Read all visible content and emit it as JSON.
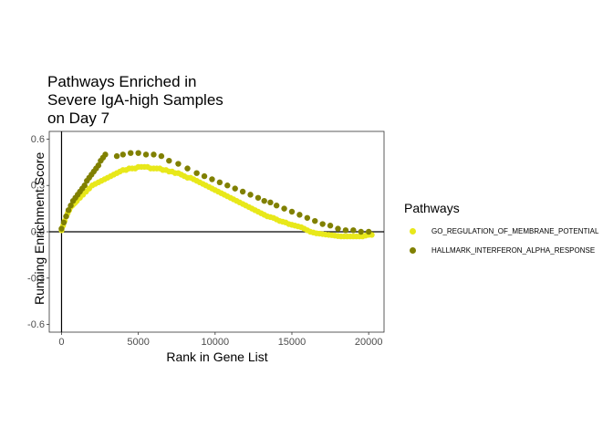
{
  "chart_data": {
    "type": "scatter",
    "title_lines": [
      "Pathways Enriched in",
      "Severe IgA-high Samples",
      "on Day 7"
    ],
    "xlabel": "Rank in Gene List",
    "ylabel": "Running Enrichment Score",
    "xlim": [
      -800,
      21000
    ],
    "ylim": [
      -0.65,
      0.65
    ],
    "x_ticks": [
      0,
      5000,
      10000,
      15000,
      20000
    ],
    "x_tick_labels": [
      "0",
      "5000",
      "10000",
      "15000",
      "20000"
    ],
    "y_ticks": [
      -0.6,
      -0.3,
      0.0,
      0.3,
      0.6
    ],
    "y_tick_labels": [
      "-0.6",
      "-0.3",
      "0.0",
      "0.3",
      "0.6"
    ],
    "grid": false,
    "reference_lines": {
      "x": 0,
      "y": 0
    },
    "legend": {
      "title": "Pathways",
      "placement": "right",
      "entries": [
        "GO_REGULATION_OF_MEMBRANE_POTENTIAL",
        "HALLMARK_INTERFERON_ALPHA_RESPONSE"
      ]
    },
    "series": [
      {
        "name": "GO_REGULATION_OF_MEMBRANE_POTENTIAL",
        "color": "#e8e81a",
        "x": [
          0,
          100,
          200,
          300,
          400,
          500,
          600,
          700,
          800,
          900,
          1000,
          1200,
          1400,
          1600,
          1800,
          2000,
          2200,
          2400,
          2600,
          2800,
          3000,
          3200,
          3400,
          3600,
          3800,
          4000,
          4200,
          4400,
          4600,
          4800,
          5000,
          5200,
          5400,
          5600,
          5800,
          6000,
          6200,
          6400,
          6600,
          6800,
          7000,
          7200,
          7400,
          7600,
          7800,
          8000,
          8200,
          8400,
          8600,
          8800,
          9000,
          9200,
          9400,
          9600,
          9800,
          10000,
          10200,
          10400,
          10600,
          10800,
          11000,
          11200,
          11400,
          11600,
          11800,
          12000,
          12200,
          12400,
          12600,
          12800,
          13000,
          13200,
          13400,
          13600,
          13800,
          14000,
          14200,
          14400,
          14600,
          14800,
          15000,
          15200,
          15400,
          15600,
          15800,
          16000,
          16200,
          16400,
          16600,
          16800,
          17000,
          17200,
          17400,
          17600,
          17800,
          18000,
          18200,
          18400,
          18600,
          18800,
          19000,
          19200,
          19400,
          19600,
          19800,
          20000,
          20200
        ],
        "y": [
          0.01,
          0.04,
          0.07,
          0.1,
          0.12,
          0.14,
          0.16,
          0.17,
          0.18,
          0.19,
          0.2,
          0.22,
          0.24,
          0.26,
          0.28,
          0.3,
          0.31,
          0.32,
          0.33,
          0.34,
          0.35,
          0.36,
          0.37,
          0.38,
          0.39,
          0.4,
          0.4,
          0.41,
          0.41,
          0.41,
          0.42,
          0.42,
          0.42,
          0.42,
          0.41,
          0.41,
          0.41,
          0.41,
          0.4,
          0.4,
          0.39,
          0.39,
          0.38,
          0.38,
          0.37,
          0.36,
          0.35,
          0.35,
          0.34,
          0.33,
          0.32,
          0.31,
          0.3,
          0.29,
          0.28,
          0.27,
          0.26,
          0.25,
          0.24,
          0.23,
          0.22,
          0.21,
          0.2,
          0.19,
          0.18,
          0.17,
          0.16,
          0.15,
          0.14,
          0.13,
          0.12,
          0.11,
          0.1,
          0.095,
          0.09,
          0.08,
          0.07,
          0.065,
          0.06,
          0.05,
          0.045,
          0.04,
          0.035,
          0.03,
          0.02,
          0.01,
          0.0,
          -0.005,
          -0.01,
          -0.012,
          -0.015,
          -0.018,
          -0.02,
          -0.022,
          -0.025,
          -0.028,
          -0.03,
          -0.03,
          -0.03,
          -0.03,
          -0.03,
          -0.03,
          -0.03,
          -0.03,
          -0.025,
          -0.02,
          -0.02
        ]
      },
      {
        "name": "HALLMARK_INTERFERON_ALPHA_RESPONSE",
        "color": "#808000",
        "x": [
          0,
          150,
          300,
          450,
          600,
          750,
          900,
          1050,
          1200,
          1350,
          1500,
          1650,
          1800,
          1950,
          2100,
          2250,
          2400,
          2550,
          2700,
          2850,
          3600,
          4000,
          4500,
          5000,
          5500,
          6000,
          6500,
          7000,
          7600,
          8200,
          8800,
          9300,
          9800,
          10300,
          10800,
          11300,
          11800,
          12300,
          12800,
          13200,
          13600,
          14000,
          14500,
          15000,
          15500,
          16000,
          16500,
          17000,
          17500,
          18000,
          18500,
          19000,
          19500,
          20000
        ],
        "y": [
          0.02,
          0.06,
          0.1,
          0.14,
          0.17,
          0.2,
          0.22,
          0.24,
          0.26,
          0.28,
          0.3,
          0.33,
          0.35,
          0.37,
          0.39,
          0.41,
          0.43,
          0.46,
          0.48,
          0.5,
          0.49,
          0.5,
          0.51,
          0.51,
          0.5,
          0.5,
          0.49,
          0.46,
          0.44,
          0.41,
          0.38,
          0.36,
          0.34,
          0.32,
          0.3,
          0.28,
          0.26,
          0.24,
          0.22,
          0.2,
          0.19,
          0.17,
          0.15,
          0.13,
          0.11,
          0.09,
          0.07,
          0.05,
          0.04,
          0.02,
          0.01,
          0.01,
          0.0,
          0.0
        ]
      }
    ]
  }
}
